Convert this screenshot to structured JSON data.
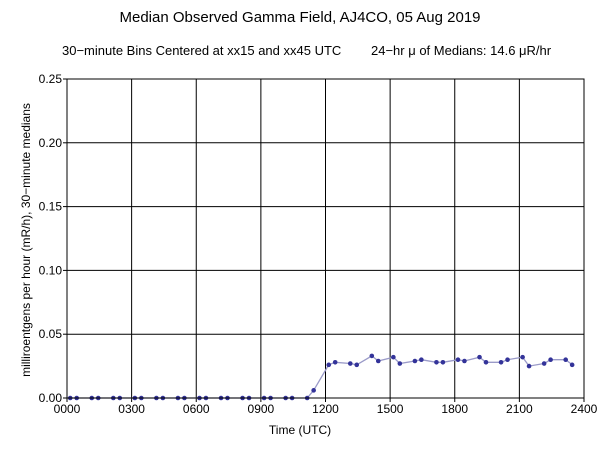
{
  "chart_data": {
    "type": "line",
    "title": "Median Observed Gamma Field, AJ4CO, 05 Aug 2019",
    "subtitle_left": "30−minute Bins Centered at xx15 and xx45 UTC",
    "subtitle_right": "24−hr μ of Medians: 14.6 μR/hr",
    "xlabel": "Time (UTC)",
    "ylabel": "milliroentgens per hour (mR/h), 30−minute medians",
    "xlim": [
      0,
      2400
    ],
    "ylim": [
      0,
      0.25
    ],
    "grid": true,
    "x_ticks": [
      0,
      300,
      600,
      900,
      1200,
      1500,
      1800,
      2100,
      2400
    ],
    "x_tick_labels": [
      "0000",
      "0300",
      "0600",
      "0900",
      "1200",
      "1500",
      "1800",
      "2100",
      "2400"
    ],
    "y_ticks": [
      0,
      0.05,
      0.1,
      0.15,
      0.2,
      0.25
    ],
    "y_tick_labels": [
      "0.00",
      "0.05",
      "0.10",
      "0.15",
      "0.20",
      "0.25"
    ],
    "series_color": "#333399",
    "x": [
      15,
      45,
      115,
      145,
      215,
      245,
      315,
      345,
      415,
      445,
      515,
      545,
      615,
      645,
      715,
      745,
      815,
      845,
      915,
      945,
      1015,
      1045,
      1115,
      1145,
      1215,
      1245,
      1315,
      1345,
      1415,
      1445,
      1515,
      1545,
      1615,
      1645,
      1715,
      1745,
      1815,
      1845,
      1915,
      1945,
      2015,
      2045,
      2115,
      2145,
      2215,
      2245,
      2315,
      2345
    ],
    "y": [
      0,
      0,
      0,
      0,
      0,
      0,
      0,
      0,
      0,
      0,
      0,
      0,
      0,
      0,
      0,
      0,
      0,
      0,
      0,
      0,
      0,
      0,
      0,
      0.006,
      0.026,
      0.028,
      0.027,
      0.026,
      0.033,
      0.029,
      0.032,
      0.027,
      0.029,
      0.03,
      0.028,
      0.028,
      0.03,
      0.029,
      0.032,
      0.028,
      0.028,
      0.03,
      0.032,
      0.025,
      0.027,
      0.03,
      0.03,
      0.026
    ]
  }
}
